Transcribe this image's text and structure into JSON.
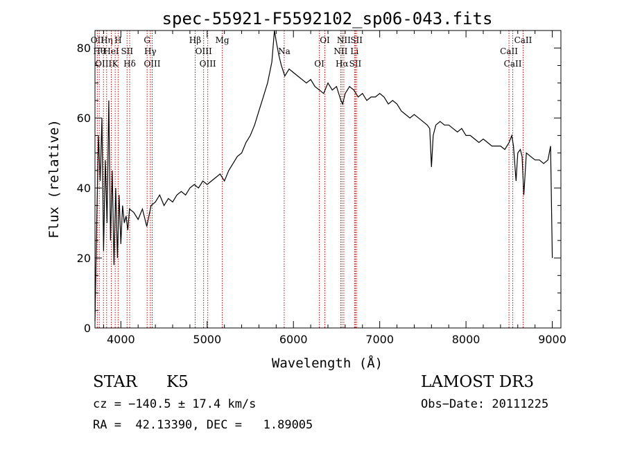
{
  "chart_data": {
    "type": "line",
    "title": "spec-55921-F5592102_sp06-043.fits",
    "xlabel": "Wavelength (Å)",
    "ylabel": "Flux (relative)",
    "xlim": [
      3700,
      9100
    ],
    "ylim": [
      0,
      85
    ],
    "xticks": [
      {
        "value": 4000,
        "label": "4000"
      },
      {
        "value": 5000,
        "label": "5000"
      },
      {
        "value": 6000,
        "label": "6000"
      },
      {
        "value": 7000,
        "label": "7000"
      },
      {
        "value": 8000,
        "label": "8000"
      },
      {
        "value": 9000,
        "label": "9000"
      }
    ],
    "yticks": [
      {
        "value": 0,
        "label": "0"
      },
      {
        "value": 20,
        "label": "20"
      },
      {
        "value": 40,
        "label": "40"
      },
      {
        "value": 60,
        "label": "60"
      },
      {
        "value": 80,
        "label": "80"
      }
    ],
    "series": [
      {
        "color": "#000000",
        "x": [
          3700,
          3720,
          3740,
          3760,
          3780,
          3800,
          3820,
          3840,
          3860,
          3880,
          3900,
          3920,
          3940,
          3960,
          3980,
          4000,
          4020,
          4040,
          4060,
          4080,
          4100,
          4150,
          4200,
          4250,
          4300,
          4350,
          4400,
          4450,
          4500,
          4550,
          4600,
          4650,
          4700,
          4750,
          4800,
          4850,
          4900,
          4950,
          5000,
          5050,
          5100,
          5150,
          5200,
          5250,
          5300,
          5350,
          5400,
          5450,
          5500,
          5550,
          5600,
          5650,
          5700,
          5750,
          5780,
          5800,
          5830,
          5860,
          5900,
          5950,
          6000,
          6050,
          6100,
          6150,
          6200,
          6250,
          6300,
          6350,
          6400,
          6450,
          6500,
          6550,
          6570,
          6600,
          6650,
          6700,
          6750,
          6800,
          6850,
          6900,
          6950,
          7000,
          7050,
          7100,
          7150,
          7200,
          7250,
          7300,
          7350,
          7400,
          7450,
          7500,
          7550,
          7580,
          7600,
          7620,
          7650,
          7700,
          7750,
          7800,
          7850,
          7900,
          7950,
          8000,
          8050,
          8100,
          8150,
          8200,
          8250,
          8300,
          8350,
          8400,
          8450,
          8500,
          8530,
          8550,
          8580,
          8600,
          8630,
          8650,
          8670,
          8700,
          8750,
          8800,
          8850,
          8900,
          8950,
          8980,
          9000
        ],
        "y": [
          2,
          30,
          55,
          42,
          60,
          22,
          48,
          30,
          65,
          25,
          45,
          18,
          40,
          20,
          38,
          24,
          35,
          30,
          32,
          28,
          34,
          33,
          31,
          34,
          29,
          35,
          36,
          38,
          35,
          37,
          36,
          38,
          39,
          38,
          40,
          41,
          40,
          42,
          41,
          42,
          43,
          44,
          42,
          45,
          47,
          49,
          50,
          53,
          55,
          58,
          62,
          66,
          70,
          76,
          85,
          82,
          78,
          75,
          72,
          74,
          73,
          72,
          71,
          70,
          71,
          69,
          68,
          67,
          70,
          68,
          69,
          65,
          64,
          67,
          69,
          68,
          66,
          67,
          65,
          66,
          66,
          67,
          66,
          64,
          65,
          64,
          62,
          61,
          60,
          61,
          60,
          59,
          58,
          57,
          46,
          55,
          58,
          59,
          58,
          58,
          57,
          56,
          57,
          55,
          55,
          54,
          53,
          54,
          53,
          52,
          52,
          52,
          51,
          53,
          55,
          52,
          42,
          50,
          51,
          49,
          38,
          50,
          49,
          48,
          48,
          47,
          48,
          52,
          20
        ]
      }
    ],
    "line_markers": [
      {
        "wavelength": 3727,
        "labels": [
          "OII"
        ]
      },
      {
        "wavelength": 3750,
        "labels": [
          "Hθ"
        ]
      },
      {
        "wavelength": 3798,
        "labels": [
          "OIII"
        ]
      },
      {
        "wavelength": 3835,
        "labels": [
          "Hη"
        ]
      },
      {
        "wavelength": 3889,
        "labels": [
          "HeI"
        ]
      },
      {
        "wavelength": 3934,
        "labels": [
          "K"
        ]
      },
      {
        "wavelength": 3968,
        "labels": [
          "H"
        ]
      },
      {
        "wavelength": 4072,
        "labels": [
          "SII"
        ]
      },
      {
        "wavelength": 4102,
        "labels": [
          "Hδ"
        ]
      },
      {
        "wavelength": 4304,
        "labels": [
          "G"
        ]
      },
      {
        "wavelength": 4341,
        "labels": [
          "Hγ"
        ]
      },
      {
        "wavelength": 4363,
        "labels": [
          "OIII"
        ]
      },
      {
        "wavelength": 4861,
        "labels": [
          "Hβ"
        ]
      },
      {
        "wavelength": 4959,
        "labels": [
          "OIII"
        ]
      },
      {
        "wavelength": 5007,
        "labels": [
          "OIII"
        ]
      },
      {
        "wavelength": 5175,
        "labels": [
          "Mg"
        ]
      },
      {
        "wavelength": 5893,
        "labels": [
          "Na"
        ]
      },
      {
        "wavelength": 6300,
        "labels": [
          "OI"
        ]
      },
      {
        "wavelength": 6364,
        "labels": [
          "OI"
        ]
      },
      {
        "wavelength": 6548,
        "labels": [
          "NII"
        ]
      },
      {
        "wavelength": 6563,
        "labels": [
          "Hα"
        ]
      },
      {
        "wavelength": 6584,
        "labels": [
          "NII"
        ]
      },
      {
        "wavelength": 6708,
        "labels": [
          "Li"
        ]
      },
      {
        "wavelength": 6717,
        "labels": [
          "SII"
        ]
      },
      {
        "wavelength": 6731,
        "labels": [
          "SII"
        ]
      },
      {
        "wavelength": 8498,
        "labels": [
          "CaII"
        ]
      },
      {
        "wavelength": 8542,
        "labels": [
          "CaII"
        ]
      },
      {
        "wavelength": 8662,
        "labels": [
          "CaII"
        ]
      }
    ],
    "grid": false,
    "colors": {
      "spectrum": "#000000",
      "line_markers": "#cc0000"
    }
  },
  "info": {
    "object_class": "STAR",
    "subclass": "K5",
    "survey": "LAMOST DR3",
    "redshift": "cz = −140.5 ± 17.4 km/s",
    "obs_date": "Obs−Date: 20111225",
    "coords": "RA =  42.13390, DEC =   1.89005"
  }
}
